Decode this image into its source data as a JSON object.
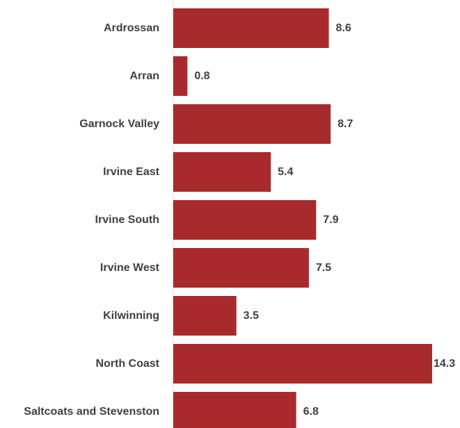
{
  "chart_data": {
    "type": "bar",
    "orientation": "horizontal",
    "title": "",
    "xlabel": "",
    "ylabel": "",
    "categories": [
      "Ardrossan",
      "Arran",
      "Garnock Valley",
      "Irvine East",
      "Irvine South",
      "Irvine West",
      "Kilwinning",
      "North Coast",
      "Saltcoats and Stevenston"
    ],
    "values": [
      8.6,
      0.8,
      8.7,
      5.4,
      7.9,
      7.5,
      3.5,
      14.3,
      6.8
    ],
    "value_labels": [
      "8.6",
      "0.8",
      "8.7",
      "5.4",
      "7.9",
      "7.5",
      "3.5",
      "14.3",
      "6.8"
    ],
    "xlim": [
      0,
      14.3
    ],
    "grid": false,
    "legend": "none",
    "bar_color": "#a92a2c",
    "label_color": "#404040",
    "axis_color": "#d9d9d9"
  }
}
